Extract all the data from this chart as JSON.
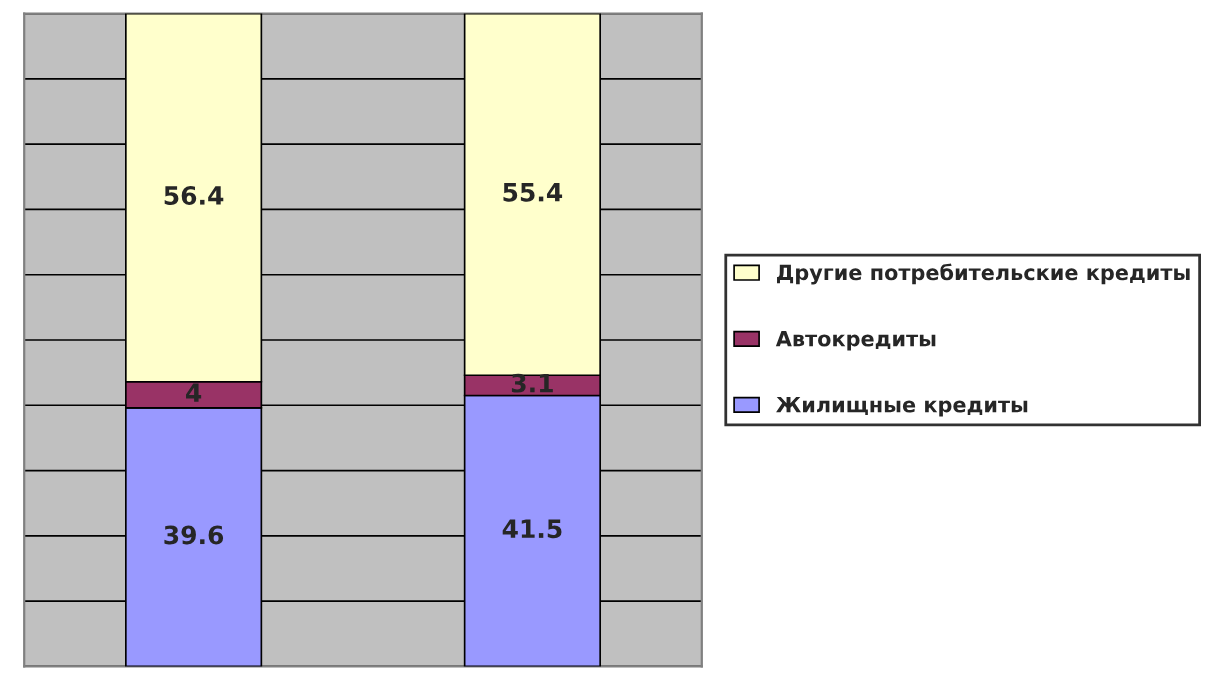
{
  "chart_data": {
    "type": "bar",
    "stacked": true,
    "categories": [
      null,
      null
    ],
    "series": [
      {
        "name": "Жилищные кредиты",
        "color": "#9999ff",
        "values": [
          39.6,
          41.5
        ]
      },
      {
        "name": "Автокредиты",
        "color": "#993366",
        "values": [
          4,
          3.1
        ]
      },
      {
        "name": "Другие потребительские кредиты",
        "color": "#ffffcc",
        "values": [
          56.4,
          55.4
        ]
      }
    ],
    "data_labels": true,
    "ylim": [
      0,
      100
    ],
    "yticks": [
      {
        "value": 0,
        "label": null
      },
      {
        "value": 10,
        "label": null
      },
      {
        "value": 20,
        "label": null
      },
      {
        "value": 30,
        "label": null
      },
      {
        "value": 40,
        "label": null
      },
      {
        "value": 50,
        "label": null
      },
      {
        "value": 60,
        "label": null
      },
      {
        "value": 70,
        "label": null
      },
      {
        "value": 80,
        "label": null
      },
      {
        "value": 90,
        "label": null
      },
      {
        "value": 100,
        "label": null
      }
    ],
    "grid": "y",
    "legend": "right"
  }
}
